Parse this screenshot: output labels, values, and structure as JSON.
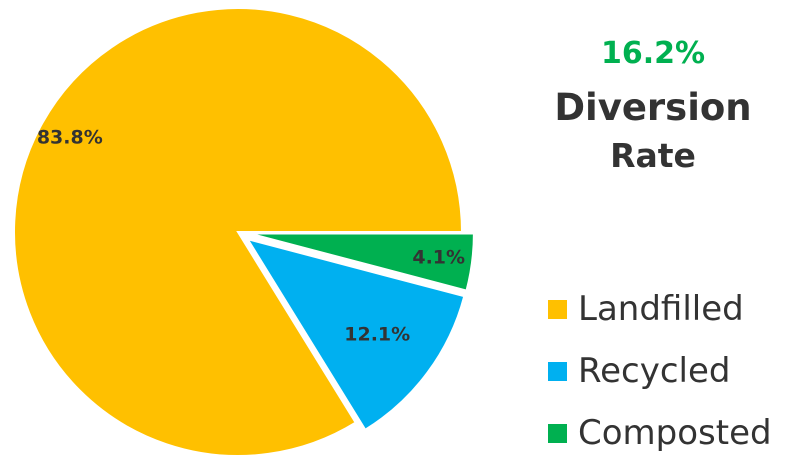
{
  "chart_data": {
    "type": "pie",
    "slices": [
      {
        "name": "Landfilled",
        "value": 83.8,
        "label": "83.8%",
        "color": "#FFC000",
        "exploded": false
      },
      {
        "name": "Recycled",
        "value": 12.1,
        "label": "12.1%",
        "color": "#00B0F0",
        "exploded": true
      },
      {
        "name": "Composted",
        "value": 4.1,
        "label": "4.1%",
        "color": "#00B050",
        "exploded": true
      }
    ],
    "legend_placement": "bottom-right"
  },
  "headline": {
    "value": "16.2%",
    "value_color": "#00B050",
    "line1": "Diversion",
    "line2": "Rate"
  },
  "legend": {
    "items": [
      {
        "label": "Landfilled",
        "color": "#FFC000"
      },
      {
        "label": "Recycled",
        "color": "#00B0F0"
      },
      {
        "label": "Composted",
        "color": "#00B050"
      }
    ]
  }
}
